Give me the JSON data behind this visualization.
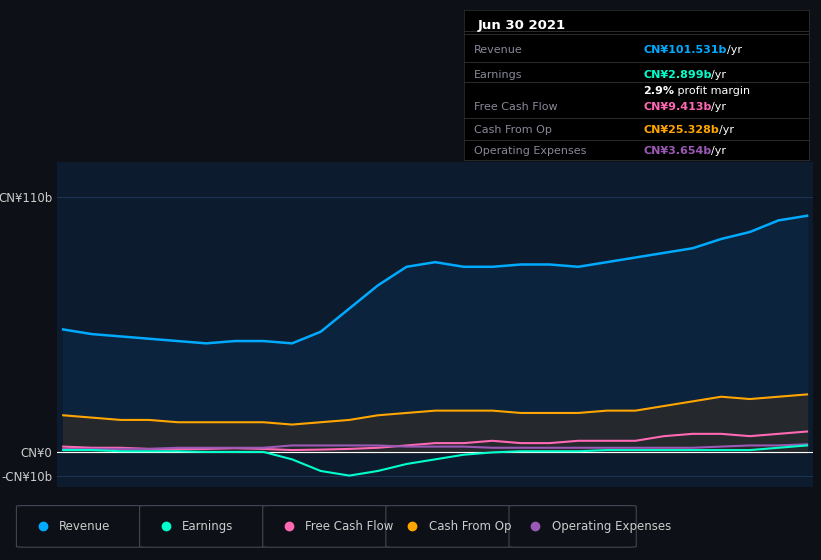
{
  "background_color": "#0d1117",
  "plot_bg_color": "#0d1b2e",
  "ylim": [
    -15,
    125
  ],
  "legend": [
    {
      "label": "Revenue",
      "color": "#00aaff"
    },
    {
      "label": "Earnings",
      "color": "#00ffcc"
    },
    {
      "label": "Free Cash Flow",
      "color": "#ff69b4"
    },
    {
      "label": "Cash From Op",
      "color": "#ffa500"
    },
    {
      "label": "Operating Expenses",
      "color": "#9b59b6"
    }
  ],
  "x": [
    2015.0,
    2015.25,
    2015.5,
    2015.75,
    2016.0,
    2016.25,
    2016.5,
    2016.75,
    2017.0,
    2017.25,
    2017.5,
    2017.75,
    2018.0,
    2018.25,
    2018.5,
    2018.75,
    2019.0,
    2019.25,
    2019.5,
    2019.75,
    2020.0,
    2020.25,
    2020.5,
    2020.75,
    2021.0,
    2021.25,
    2021.5
  ],
  "revenue": [
    53,
    51,
    50,
    49,
    48,
    47,
    48,
    48,
    47,
    52,
    62,
    72,
    80,
    82,
    80,
    80,
    81,
    81,
    80,
    82,
    84,
    86,
    88,
    92,
    95,
    100,
    102
  ],
  "earnings": [
    1,
    1,
    0.5,
    0.5,
    0.5,
    0.2,
    0.2,
    0.2,
    -3,
    -8,
    -10,
    -8,
    -5,
    -3,
    -1,
    0,
    0.5,
    0.5,
    0.5,
    1,
    1,
    1,
    1,
    1,
    1,
    2,
    3
  ],
  "free_cash_flow": [
    2.5,
    2,
    2,
    1.5,
    1.5,
    1.5,
    1.8,
    1.5,
    1,
    1.2,
    1.5,
    2,
    3,
    4,
    4,
    5,
    4,
    4,
    5,
    5,
    5,
    7,
    8,
    8,
    7,
    8,
    9
  ],
  "cash_from_op": [
    16,
    15,
    14,
    14,
    13,
    13,
    13,
    13,
    12,
    13,
    14,
    16,
    17,
    18,
    18,
    18,
    17,
    17,
    17,
    18,
    18,
    20,
    22,
    24,
    23,
    24,
    25
  ],
  "operating_expenses": [
    1.5,
    1.5,
    1.5,
    1.5,
    2,
    2,
    2,
    2,
    3,
    3,
    3,
    3,
    2.5,
    2.5,
    2.5,
    2,
    2,
    2,
    2,
    2,
    2,
    2,
    2,
    2.5,
    3,
    3,
    3.5
  ],
  "info_date": "Jun 30 2021",
  "info_rows": [
    {
      "label": "Revenue",
      "value": "CN¥101.531b",
      "unit": "/yr",
      "color": "#00aaff"
    },
    {
      "label": "Earnings",
      "value": "CN¥2.899b",
      "unit": "/yr",
      "color": "#00ffcc"
    },
    {
      "label": "",
      "value": "2.9%",
      "unit": " profit margin",
      "color": "#ffffff"
    },
    {
      "label": "Free Cash Flow",
      "value": "CN¥9.413b",
      "unit": "/yr",
      "color": "#ff69b4"
    },
    {
      "label": "Cash From Op",
      "value": "CN¥25.328b",
      "unit": "/yr",
      "color": "#ffa500"
    },
    {
      "label": "Operating Expenses",
      "value": "CN¥3.654b",
      "unit": "/yr",
      "color": "#9b59b6"
    }
  ]
}
